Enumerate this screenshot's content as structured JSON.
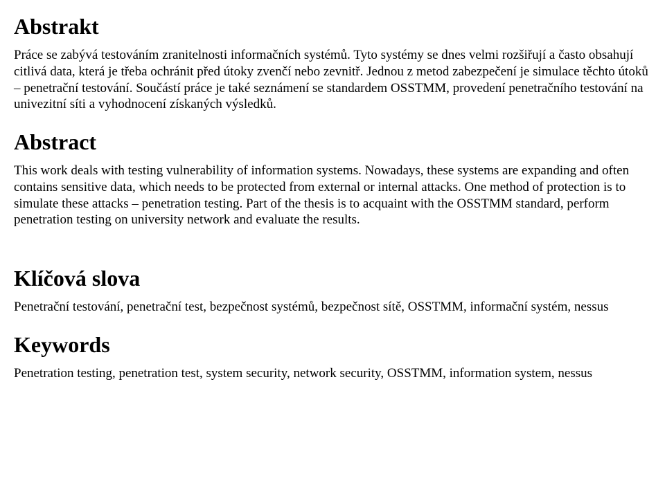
{
  "doc": {
    "background_color": "#ffffff",
    "text_color": "#000000",
    "heading_fontsize_pt": 24,
    "body_fontsize_pt": 14
  },
  "sections": {
    "abstrakt": {
      "title": "Abstrakt",
      "body": "Práce se zabývá testováním zranitelnosti informačních systémů. Tyto systémy se dnes velmi rozšiřují a často obsahují citlivá data, která je třeba ochránit před útoky zvenčí nebo zevnitř. Jednou z metod zabezpečení je simulace těchto útoků – penetrační testování. Součástí práce je také seznámení se standardem OSSTMM, provedení penetračního testování na univezitní síti a vyhodnocení získaných výsledků."
    },
    "abstract": {
      "title": "Abstract",
      "body": "This work deals with testing  vulnerability of information systems. Nowadays, these systems are expanding and often contains sensitive data, which needs to be protected from external or internal attacks. One method of protection is to simulate these attacks – penetration testing. Part of the thesis is to acquaint with the OSSTMM standard, perform penetration testing on university network and evaluate the results."
    },
    "klicova": {
      "title": "Klíčová slova",
      "body": "Penetrační testování, penetrační test, bezpečnost systémů, bezpečnost sítě, OSSTMM, informační systém, nessus"
    },
    "keywords": {
      "title": "Keywords",
      "body": "Penetration testing, penetration test, system security, network security, OSSTMM, information system, nessus"
    }
  }
}
